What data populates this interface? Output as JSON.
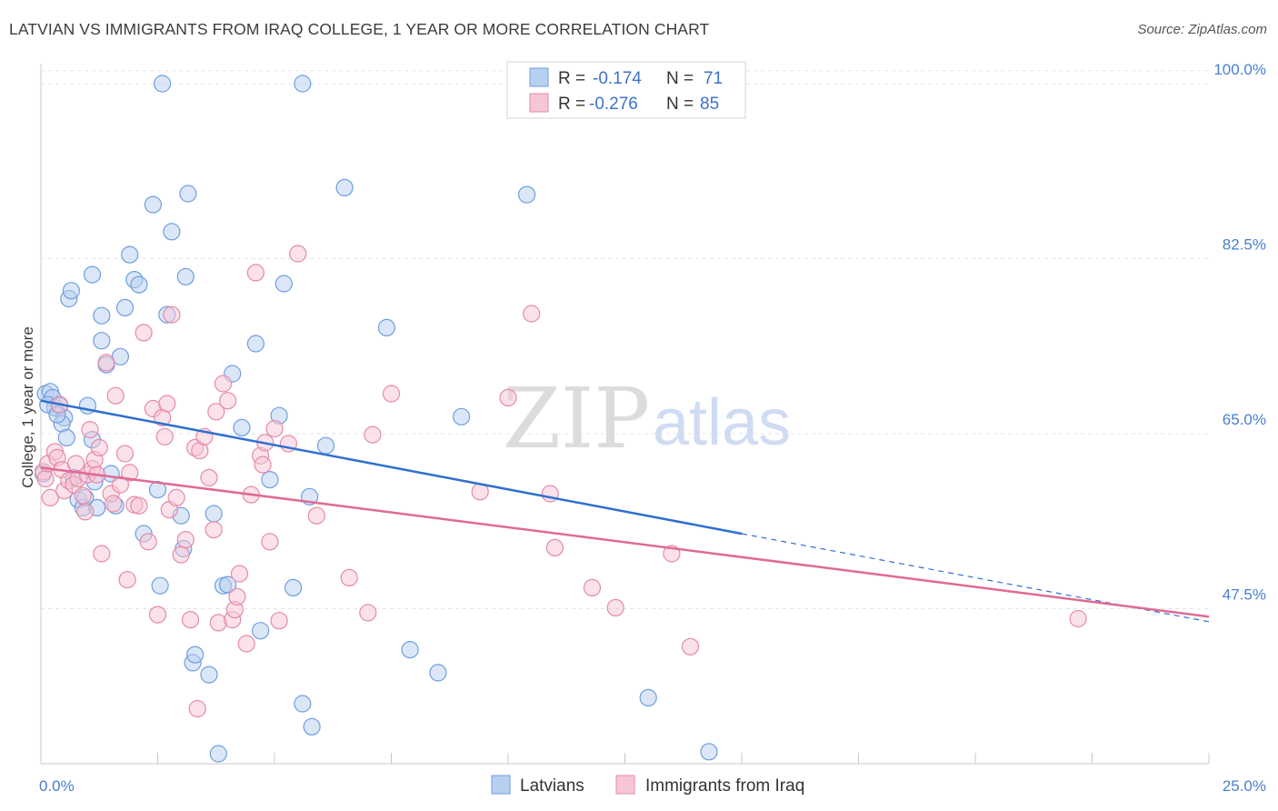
{
  "header": {
    "title": "LATVIAN VS IMMIGRANTS FROM IRAQ COLLEGE, 1 YEAR OR MORE CORRELATION CHART",
    "source": "Source: ZipAtlas.com"
  },
  "watermark": {
    "part1": "ZIP",
    "part2": "atlas"
  },
  "legend_top": [
    {
      "r_label": "R = ",
      "r_value": "-0.174",
      "n_label": "N = ",
      "n_value": "71"
    },
    {
      "r_label": "R = ",
      "r_value": "-0.276",
      "n_label": "N = ",
      "n_value": "85"
    }
  ],
  "chart_data": {
    "type": "scatter",
    "xlabel": "",
    "ylabel": "College, 1 year or more",
    "x_ticks": [
      "0.0%",
      "25.0%"
    ],
    "y_ticks": [
      "100.0%",
      "82.5%",
      "65.0%",
      "47.5%"
    ],
    "xlim": [
      0,
      25
    ],
    "ylim": [
      32,
      102
    ],
    "y_tick_values": [
      100,
      82.5,
      65,
      47.5
    ],
    "grid": true,
    "legend_position": "top-center",
    "colors": {
      "latvians_fill": "#b8d0f0",
      "latvians_stroke": "#6f9ee0",
      "latvians_line": "#2f6fd1",
      "iraq_fill": "#f7c6d6",
      "iraq_stroke": "#e58aa8",
      "iraq_line": "#e06a94",
      "grid": "#e3e3e3"
    },
    "series": [
      {
        "name": "Latvians",
        "r": -0.174,
        "n": 71,
        "trend": {
          "x0": 0,
          "y0": 68.3,
          "x1": 15,
          "y1": 55.0,
          "dash_x1": 25,
          "dash_y1": 46.2
        },
        "points": [
          [
            0.1,
            69.0
          ],
          [
            0.2,
            69.2
          ],
          [
            0.25,
            68.6
          ],
          [
            0.3,
            67.6
          ],
          [
            0.15,
            67.9
          ],
          [
            0.4,
            67.8
          ],
          [
            0.5,
            66.6
          ],
          [
            0.45,
            66.0
          ],
          [
            0.55,
            64.6
          ],
          [
            0.7,
            60.6
          ],
          [
            0.8,
            58.4
          ],
          [
            0.9,
            57.6
          ],
          [
            1.0,
            67.8
          ],
          [
            1.1,
            64.4
          ],
          [
            1.15,
            60.2
          ],
          [
            1.2,
            57.6
          ],
          [
            1.3,
            74.3
          ],
          [
            1.4,
            71.9
          ],
          [
            1.5,
            61.0
          ],
          [
            1.6,
            57.8
          ],
          [
            1.7,
            72.7
          ],
          [
            1.8,
            77.6
          ],
          [
            1.9,
            82.9
          ],
          [
            2.0,
            80.4
          ],
          [
            2.1,
            79.9
          ],
          [
            2.2,
            55.0
          ],
          [
            2.4,
            87.9
          ],
          [
            2.5,
            59.4
          ],
          [
            2.55,
            49.8
          ],
          [
            2.7,
            76.9
          ],
          [
            2.8,
            85.2
          ],
          [
            3.0,
            56.8
          ],
          [
            3.05,
            53.5
          ],
          [
            3.1,
            80.7
          ],
          [
            3.15,
            89.0
          ],
          [
            3.25,
            42.1
          ],
          [
            3.3,
            42.9
          ],
          [
            3.6,
            40.9
          ],
          [
            3.7,
            57.0
          ],
          [
            3.8,
            33.0
          ],
          [
            3.9,
            49.8
          ],
          [
            4.0,
            49.9
          ],
          [
            4.1,
            71.0
          ],
          [
            4.3,
            65.6
          ],
          [
            4.6,
            74.0
          ],
          [
            4.7,
            45.3
          ],
          [
            4.9,
            60.4
          ],
          [
            5.1,
            66.8
          ],
          [
            5.2,
            80.0
          ],
          [
            5.4,
            49.6
          ],
          [
            5.6,
            38.0
          ],
          [
            5.75,
            58.7
          ],
          [
            5.8,
            35.7
          ],
          [
            6.1,
            63.8
          ],
          [
            6.5,
            89.6
          ],
          [
            7.4,
            75.6
          ],
          [
            7.9,
            43.4
          ],
          [
            8.5,
            41.1
          ],
          [
            9.0,
            66.7
          ],
          [
            10.4,
            88.9
          ],
          [
            13.0,
            38.6
          ],
          [
            14.3,
            33.2
          ],
          [
            2.6,
            100.0
          ],
          [
            5.6,
            100.0
          ],
          [
            0.6,
            78.5
          ],
          [
            0.65,
            79.3
          ],
          [
            1.1,
            80.9
          ],
          [
            1.3,
            76.8
          ],
          [
            0.95,
            58.6
          ],
          [
            0.35,
            66.9
          ],
          [
            0.05,
            61.0
          ]
        ]
      },
      {
        "name": "Immigrants from Iraq",
        "r": -0.276,
        "n": 85,
        "trend": {
          "x0": 0,
          "y0": 61.6,
          "x1": 25,
          "y1": 46.7
        },
        "points": [
          [
            0.05,
            61.2
          ],
          [
            0.1,
            60.5
          ],
          [
            0.15,
            62.0
          ],
          [
            0.2,
            58.6
          ],
          [
            0.3,
            63.2
          ],
          [
            0.35,
            62.6
          ],
          [
            0.4,
            67.9
          ],
          [
            0.45,
            61.4
          ],
          [
            0.5,
            59.3
          ],
          [
            0.6,
            60.3
          ],
          [
            0.7,
            59.9
          ],
          [
            0.75,
            62.0
          ],
          [
            0.8,
            60.5
          ],
          [
            0.9,
            58.8
          ],
          [
            0.95,
            57.2
          ],
          [
            1.0,
            60.9
          ],
          [
            1.05,
            65.4
          ],
          [
            1.1,
            61.5
          ],
          [
            1.15,
            62.4
          ],
          [
            1.2,
            60.9
          ],
          [
            1.25,
            63.6
          ],
          [
            1.3,
            53.0
          ],
          [
            1.4,
            72.1
          ],
          [
            1.5,
            59.0
          ],
          [
            1.55,
            58.0
          ],
          [
            1.6,
            68.8
          ],
          [
            1.7,
            59.9
          ],
          [
            1.8,
            63.0
          ],
          [
            1.85,
            50.4
          ],
          [
            1.9,
            61.1
          ],
          [
            2.0,
            57.9
          ],
          [
            2.1,
            57.8
          ],
          [
            2.2,
            75.1
          ],
          [
            2.3,
            54.2
          ],
          [
            2.4,
            67.5
          ],
          [
            2.5,
            46.9
          ],
          [
            2.6,
            66.6
          ],
          [
            2.65,
            64.7
          ],
          [
            2.7,
            68.0
          ],
          [
            2.75,
            57.4
          ],
          [
            2.8,
            76.9
          ],
          [
            2.9,
            58.6
          ],
          [
            3.0,
            52.9
          ],
          [
            3.1,
            54.4
          ],
          [
            3.2,
            46.4
          ],
          [
            3.3,
            63.6
          ],
          [
            3.35,
            37.5
          ],
          [
            3.4,
            63.3
          ],
          [
            3.5,
            64.7
          ],
          [
            3.6,
            60.6
          ],
          [
            3.7,
            55.4
          ],
          [
            3.75,
            67.2
          ],
          [
            3.8,
            46.1
          ],
          [
            3.9,
            70.0
          ],
          [
            4.0,
            68.3
          ],
          [
            4.1,
            46.4
          ],
          [
            4.15,
            47.4
          ],
          [
            4.2,
            48.7
          ],
          [
            4.25,
            51.0
          ],
          [
            4.4,
            44.0
          ],
          [
            4.5,
            58.9
          ],
          [
            4.6,
            81.1
          ],
          [
            4.7,
            62.8
          ],
          [
            4.75,
            61.9
          ],
          [
            4.8,
            64.1
          ],
          [
            4.9,
            54.2
          ],
          [
            5.0,
            65.5
          ],
          [
            5.1,
            46.3
          ],
          [
            5.3,
            64.0
          ],
          [
            5.5,
            83.0
          ],
          [
            5.9,
            56.8
          ],
          [
            6.6,
            50.6
          ],
          [
            7.0,
            47.1
          ],
          [
            7.1,
            64.9
          ],
          [
            7.5,
            69.0
          ],
          [
            9.4,
            59.2
          ],
          [
            10.0,
            68.6
          ],
          [
            10.5,
            77.0
          ],
          [
            10.9,
            59.0
          ],
          [
            11.0,
            53.6
          ],
          [
            11.8,
            49.6
          ],
          [
            12.3,
            47.6
          ],
          [
            13.5,
            53.0
          ],
          [
            13.9,
            43.7
          ],
          [
            22.2,
            46.5
          ]
        ]
      }
    ]
  },
  "legend_bottom": [
    {
      "name": "Latvians"
    },
    {
      "name": "Immigrants from Iraq"
    }
  ]
}
